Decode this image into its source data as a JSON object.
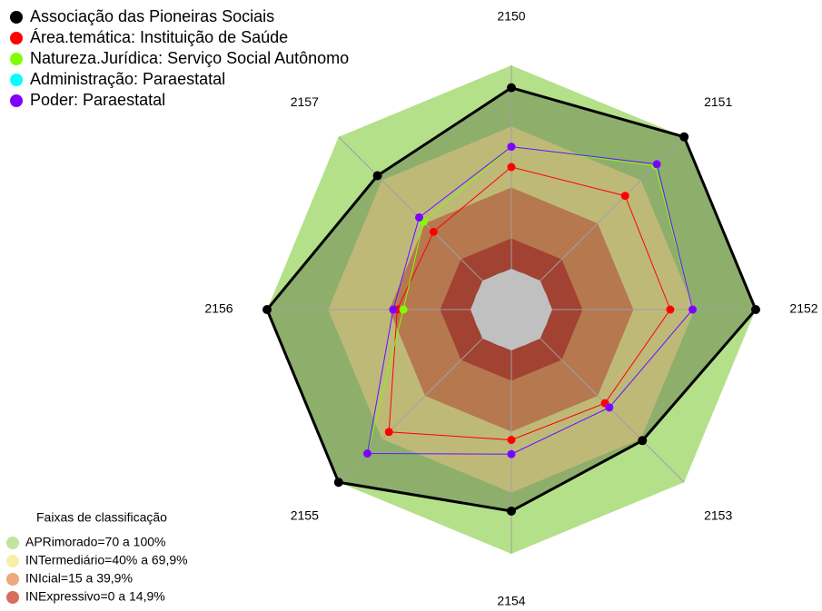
{
  "chart_data": {
    "type": "radar",
    "categories": [
      "2150",
      "2151",
      "2152",
      "2153",
      "2154",
      "2155",
      "2156",
      "2157"
    ],
    "rlim": [
      0,
      100
    ],
    "series": [
      {
        "name": "Associação das Pioneiras Sociais",
        "color": "#000000",
        "values": [
          89,
          100,
          100,
          71,
          79,
          100,
          100,
          73
        ]
      },
      {
        "name": "Área.temática: Instituição de Saúde",
        "color": "#ff0000",
        "values": [
          50,
          59,
          58,
          45,
          44,
          65,
          36,
          34
        ]
      },
      {
        "name": "Natureza.Jurídica: Serviço Social Autônomo",
        "color": "#80ff00",
        "values": [
          60,
          80,
          69,
          48,
          51,
          80,
          33,
          41
        ]
      },
      {
        "name": "Administração: Paraestatal",
        "color": "#00ffff",
        "values": [
          60,
          81,
          69,
          48,
          51,
          80,
          38,
          44
        ]
      },
      {
        "name": "Poder: Paraestatal",
        "color": "#8000ff",
        "values": [
          60,
          81,
          69,
          48,
          51,
          80,
          38,
          44
        ]
      }
    ],
    "bands_title": "Faixas de classificação",
    "bands": [
      {
        "label": "APRimorado=70 a 100%",
        "color": "#b5e08a",
        "range": [
          70,
          100
        ]
      },
      {
        "label": "INTermediário=40% a 69,9%",
        "color": "#f5ee9a",
        "range": [
          40,
          69.9
        ]
      },
      {
        "label": "INIcial=15 a 39,9%",
        "color": "#e89a66",
        "range": [
          15,
          39.9
        ]
      },
      {
        "label": "INExpressivo=0 a 14,9%",
        "color": "#cf5540",
        "range": [
          0,
          14.9
        ]
      }
    ]
  }
}
